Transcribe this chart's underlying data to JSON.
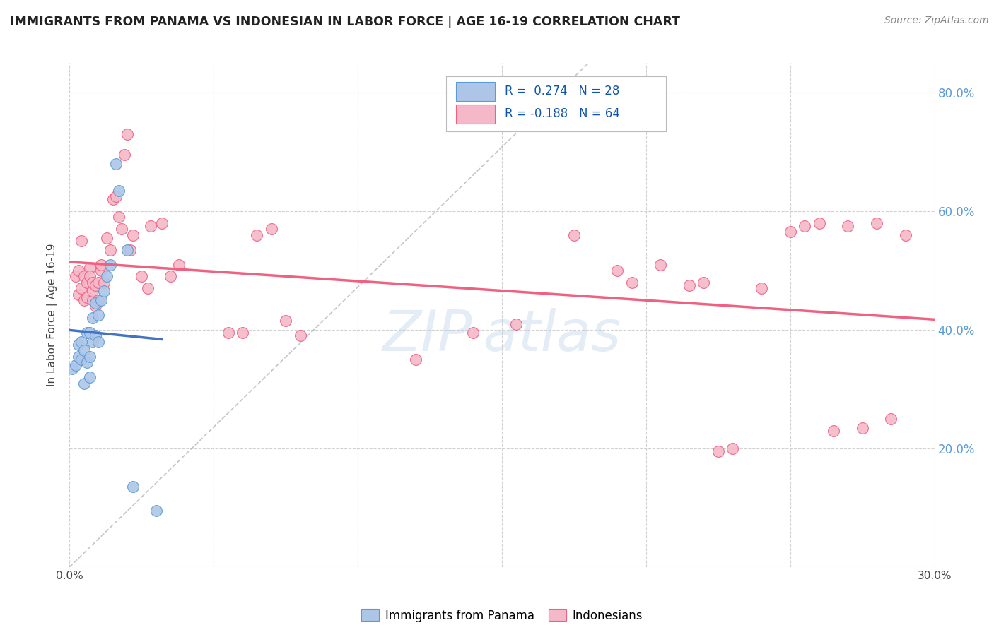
{
  "title": "IMMIGRANTS FROM PANAMA VS INDONESIAN IN LABOR FORCE | AGE 16-19 CORRELATION CHART",
  "source": "Source: ZipAtlas.com",
  "ylabel": "In Labor Force | Age 16-19",
  "xlim": [
    0.0,
    0.3
  ],
  "ylim": [
    0.0,
    0.85
  ],
  "xticks": [
    0.0,
    0.05,
    0.1,
    0.15,
    0.2,
    0.25,
    0.3
  ],
  "xticklabels": [
    "0.0%",
    "",
    "",
    "",
    "",
    "",
    "30.0%"
  ],
  "yticks_left": [
    0.0,
    0.2,
    0.4,
    0.6,
    0.8
  ],
  "yticklabels_left": [
    "",
    "",
    "",
    "",
    ""
  ],
  "yticks_right": [
    0.2,
    0.4,
    0.6,
    0.8
  ],
  "yticklabels_right": [
    "20.0%",
    "40.0%",
    "60.0%",
    "80.0%"
  ],
  "panama_R": "0.274",
  "panama_N": "28",
  "indonesian_R": "-0.188",
  "indonesian_N": "64",
  "panama_color": "#adc6e8",
  "indonesian_color": "#f5b8c8",
  "panama_edge_color": "#5b9bd5",
  "indonesian_edge_color": "#f06080",
  "panama_line_color": "#4472c4",
  "indonesian_line_color": "#f06080",
  "diagonal_line_color": "#b0b8c0",
  "background_color": "#ffffff",
  "grid_color": "#cccccc",
  "panama_x": [
    0.001,
    0.002,
    0.003,
    0.003,
    0.004,
    0.004,
    0.005,
    0.005,
    0.006,
    0.006,
    0.007,
    0.007,
    0.007,
    0.008,
    0.008,
    0.009,
    0.009,
    0.01,
    0.01,
    0.011,
    0.012,
    0.013,
    0.014,
    0.016,
    0.017,
    0.02,
    0.022,
    0.03
  ],
  "panama_y": [
    0.335,
    0.34,
    0.355,
    0.375,
    0.35,
    0.38,
    0.31,
    0.365,
    0.345,
    0.395,
    0.32,
    0.355,
    0.395,
    0.38,
    0.42,
    0.39,
    0.445,
    0.425,
    0.38,
    0.45,
    0.465,
    0.49,
    0.51,
    0.68,
    0.635,
    0.535,
    0.135,
    0.095
  ],
  "indonesian_x": [
    0.002,
    0.003,
    0.003,
    0.004,
    0.004,
    0.005,
    0.005,
    0.006,
    0.006,
    0.007,
    0.007,
    0.008,
    0.008,
    0.008,
    0.009,
    0.009,
    0.01,
    0.01,
    0.011,
    0.011,
    0.012,
    0.013,
    0.014,
    0.015,
    0.016,
    0.017,
    0.018,
    0.019,
    0.02,
    0.021,
    0.022,
    0.025,
    0.027,
    0.028,
    0.032,
    0.035,
    0.038,
    0.055,
    0.06,
    0.065,
    0.07,
    0.075,
    0.08,
    0.12,
    0.14,
    0.155,
    0.175,
    0.19,
    0.195,
    0.205,
    0.215,
    0.22,
    0.225,
    0.23,
    0.24,
    0.25,
    0.255,
    0.26,
    0.265,
    0.27,
    0.275,
    0.28,
    0.285,
    0.29
  ],
  "indonesian_y": [
    0.49,
    0.46,
    0.5,
    0.47,
    0.55,
    0.45,
    0.49,
    0.455,
    0.48,
    0.505,
    0.49,
    0.45,
    0.465,
    0.48,
    0.44,
    0.475,
    0.45,
    0.48,
    0.5,
    0.51,
    0.48,
    0.555,
    0.535,
    0.62,
    0.625,
    0.59,
    0.57,
    0.695,
    0.73,
    0.535,
    0.56,
    0.49,
    0.47,
    0.575,
    0.58,
    0.49,
    0.51,
    0.395,
    0.395,
    0.56,
    0.57,
    0.415,
    0.39,
    0.35,
    0.395,
    0.41,
    0.56,
    0.5,
    0.48,
    0.51,
    0.475,
    0.48,
    0.195,
    0.2,
    0.47,
    0.565,
    0.575,
    0.58,
    0.23,
    0.575,
    0.235,
    0.58,
    0.25,
    0.56
  ]
}
